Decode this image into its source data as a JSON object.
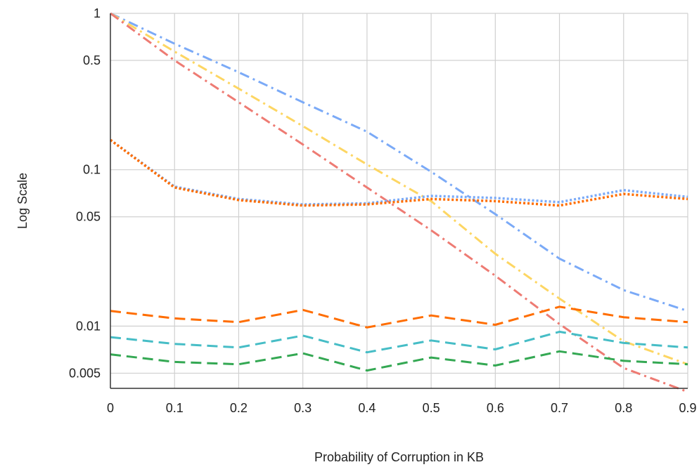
{
  "chart_data": {
    "type": "line",
    "title": "",
    "xlabel": "Probability of Corruption in KB",
    "ylabel": "Log Scale",
    "y_scale": "log",
    "xlim": [
      0,
      0.9
    ],
    "ylim": [
      0.004,
      1
    ],
    "grid": true,
    "legend": "none",
    "x": [
      0,
      0.1,
      0.2,
      0.3,
      0.4,
      0.5,
      0.6,
      0.7,
      0.8,
      0.9
    ],
    "x_tick_labels": [
      "0",
      "0.1",
      "0.2",
      "0.3",
      "0.4",
      "0.5",
      "0.6",
      "0.7",
      "0.8",
      "0.9"
    ],
    "y_ticks": [
      1,
      0.5,
      0.1,
      0.05,
      0.01,
      0.005
    ],
    "y_tick_labels": [
      "1",
      "0.5",
      "0.1",
      "0.05",
      "0.01",
      "0.005"
    ],
    "series": [
      {
        "style": "dashdot",
        "color": "#7baaf7",
        "values": [
          1.0,
          0.64,
          0.42,
          0.27,
          0.175,
          0.097,
          0.052,
          0.027,
          0.017,
          0.0125
        ]
      },
      {
        "style": "dashdot",
        "color": "#fdd663",
        "values": [
          1.0,
          0.57,
          0.33,
          0.19,
          0.108,
          0.063,
          0.029,
          0.015,
          0.008,
          0.0057
        ]
      },
      {
        "style": "dashdot",
        "color": "#ee7b73",
        "values": [
          1.0,
          0.5,
          0.27,
          0.145,
          0.077,
          0.041,
          0.021,
          0.0103,
          0.0054,
          0.0038
        ]
      },
      {
        "style": "dotted",
        "color": "#7baaf7",
        "values": [
          0.155,
          0.078,
          0.065,
          0.06,
          0.061,
          0.068,
          0.066,
          0.062,
          0.074,
          0.067
        ]
      },
      {
        "style": "dotted",
        "color": "#ff6d00",
        "values": [
          0.155,
          0.077,
          0.064,
          0.059,
          0.06,
          0.065,
          0.063,
          0.059,
          0.07,
          0.065
        ]
      },
      {
        "style": "dashed",
        "color": "#ff6d00",
        "values": [
          0.0125,
          0.0112,
          0.0106,
          0.0127,
          0.0098,
          0.0117,
          0.0102,
          0.0133,
          0.0114,
          0.0106
        ]
      },
      {
        "style": "dashed",
        "color": "#46bdc6",
        "values": [
          0.0085,
          0.0077,
          0.0073,
          0.0087,
          0.0068,
          0.0081,
          0.0071,
          0.0092,
          0.0078,
          0.0073
        ]
      },
      {
        "style": "dashed",
        "color": "#34a853",
        "values": [
          0.0066,
          0.0059,
          0.0057,
          0.0067,
          0.0052,
          0.0063,
          0.0056,
          0.0069,
          0.006,
          0.0057
        ]
      }
    ]
  }
}
